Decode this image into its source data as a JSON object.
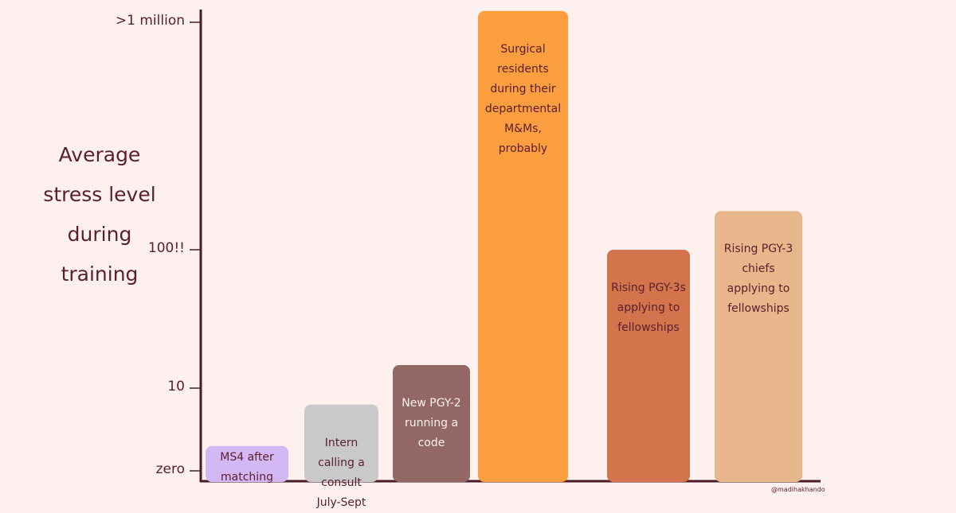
{
  "chart_data": {
    "type": "bar",
    "ylabel": "Average stress level during training",
    "categories": [
      "MS4 after matching",
      "Intern calling a consult July-Sept",
      "New PGY-2 running a code",
      "Surgical residents during their departmental M&Ms, probably",
      "Rising PGY-3s applying to fellowships",
      "Rising PGY-3 chiefs applying to fellowships"
    ],
    "values": [
      3,
      8,
      25,
      1050000,
      100,
      170000
    ],
    "colors": [
      "#d4b8f5",
      "#c9c9c9",
      "#936763",
      "#fa9e40",
      "#d3744d",
      "#e8b68b"
    ],
    "yticks": [
      {
        "value": 0,
        "label": "zero"
      },
      10,
      {
        "value": 100,
        "label": "100!!"
      },
      {
        "value": 1000000,
        "label": ">1 million"
      }
    ],
    "credit": "@madihakhando"
  }
}
